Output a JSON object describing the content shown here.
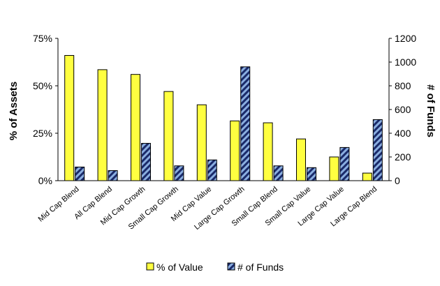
{
  "chart_data": {
    "type": "bar",
    "categories": [
      "Mid Cap Blend",
      "All Cap Blend",
      "Mid Cap Growth",
      "Small Cap Growth",
      "Mid Cap Value",
      "Large Cap Growth",
      "Small Cap Blend",
      "Small Cap Value",
      "Large Cap Value",
      "Large Cap Blend"
    ],
    "series": [
      {
        "name": "% of Value",
        "axis": "left",
        "color": "#ffff40",
        "values": [
          66,
          58.5,
          56,
          47,
          40,
          31.5,
          30.5,
          22,
          12.5,
          4
        ]
      },
      {
        "name": "# of Funds",
        "axis": "right",
        "color": "#8aaee0",
        "pattern": "diagonal-stripes",
        "values": [
          115,
          85,
          315,
          125,
          175,
          960,
          125,
          110,
          280,
          515
        ]
      }
    ],
    "y_left": {
      "label": "% of Assets",
      "min": 0,
      "max": 75,
      "ticks": [
        0,
        25,
        50,
        75
      ],
      "tick_labels": [
        "0%",
        "25%",
        "50%",
        "75%"
      ]
    },
    "y_right": {
      "label": "# of Funds",
      "min": 0,
      "max": 1200,
      "ticks": [
        0,
        200,
        400,
        600,
        800,
        1000,
        1200
      ],
      "tick_labels": [
        "0",
        "200",
        "400",
        "600",
        "800",
        "1000",
        "1200"
      ]
    },
    "legend": {
      "position": "bottom",
      "items": [
        "% of Value",
        "# of Funds"
      ]
    },
    "grid": false
  }
}
